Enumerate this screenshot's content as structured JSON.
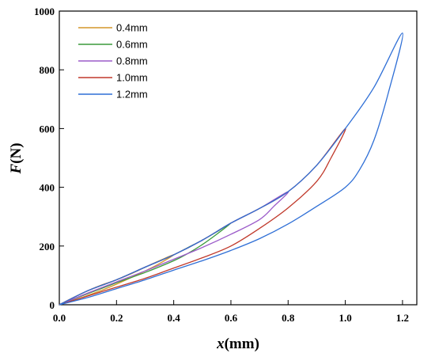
{
  "chart_data": {
    "type": "line",
    "xlabel_var": "x",
    "xlabel_unit": "(mm)",
    "ylabel_var": "F",
    "ylabel_unit": "(N)",
    "xlim": [
      0.0,
      1.25
    ],
    "ylim": [
      0,
      1000
    ],
    "x_ticks": [
      "0.0",
      "0.2",
      "0.4",
      "0.6",
      "0.8",
      "1.0",
      "1.2"
    ],
    "y_ticks": [
      "0",
      "200",
      "400",
      "600",
      "800",
      "1000"
    ],
    "legend_position": "top-left",
    "grid": false,
    "series": [
      {
        "name": "0.4mm",
        "color": "#d4962a",
        "x": [
          0.0,
          0.05,
          0.1,
          0.15,
          0.2,
          0.25,
          0.3,
          0.35,
          0.4,
          0.35,
          0.3,
          0.25,
          0.2,
          0.15,
          0.1,
          0.05,
          0.0
        ],
        "y": [
          0,
          25,
          48,
          68,
          85,
          105,
          128,
          150,
          170,
          140,
          115,
          92,
          70,
          50,
          32,
          15,
          0
        ]
      },
      {
        "name": "0.6mm",
        "color": "#3a9a3a",
        "x": [
          0.0,
          0.1,
          0.2,
          0.3,
          0.4,
          0.45,
          0.5,
          0.55,
          0.6,
          0.55,
          0.5,
          0.45,
          0.4,
          0.3,
          0.2,
          0.1,
          0.0
        ],
        "y": [
          0,
          48,
          85,
          128,
          170,
          195,
          220,
          248,
          278,
          240,
          205,
          175,
          150,
          110,
          75,
          38,
          0
        ]
      },
      {
        "name": "0.8mm",
        "color": "#9b5bc9",
        "x": [
          0.0,
          0.1,
          0.2,
          0.3,
          0.4,
          0.5,
          0.6,
          0.7,
          0.8,
          0.75,
          0.7,
          0.6,
          0.5,
          0.4,
          0.3,
          0.2,
          0.1,
          0.0
        ],
        "y": [
          0,
          48,
          85,
          128,
          170,
          220,
          278,
          328,
          385,
          335,
          290,
          240,
          195,
          155,
          115,
          78,
          40,
          0
        ]
      },
      {
        "name": "1.0mm",
        "color": "#c0392b",
        "x": [
          0.0,
          0.1,
          0.2,
          0.3,
          0.4,
          0.5,
          0.6,
          0.7,
          0.8,
          0.9,
          1.0,
          0.95,
          0.9,
          0.8,
          0.7,
          0.6,
          0.5,
          0.4,
          0.3,
          0.2,
          0.1,
          0.0
        ],
        "y": [
          0,
          48,
          85,
          128,
          170,
          220,
          278,
          328,
          385,
          475,
          600,
          500,
          420,
          330,
          260,
          200,
          160,
          125,
          90,
          60,
          30,
          0
        ]
      },
      {
        "name": "1.2mm",
        "color": "#2f6fd6",
        "x": [
          0.0,
          0.1,
          0.2,
          0.3,
          0.4,
          0.5,
          0.6,
          0.7,
          0.8,
          0.9,
          1.0,
          1.1,
          1.2,
          1.15,
          1.1,
          1.05,
          1.0,
          0.9,
          0.8,
          0.7,
          0.6,
          0.5,
          0.4,
          0.3,
          0.2,
          0.1,
          0.0
        ],
        "y": [
          0,
          48,
          85,
          128,
          170,
          220,
          278,
          328,
          385,
          475,
          600,
          740,
          925,
          720,
          560,
          460,
          400,
          335,
          275,
          225,
          185,
          150,
          118,
          85,
          55,
          25,
          0
        ]
      }
    ]
  }
}
